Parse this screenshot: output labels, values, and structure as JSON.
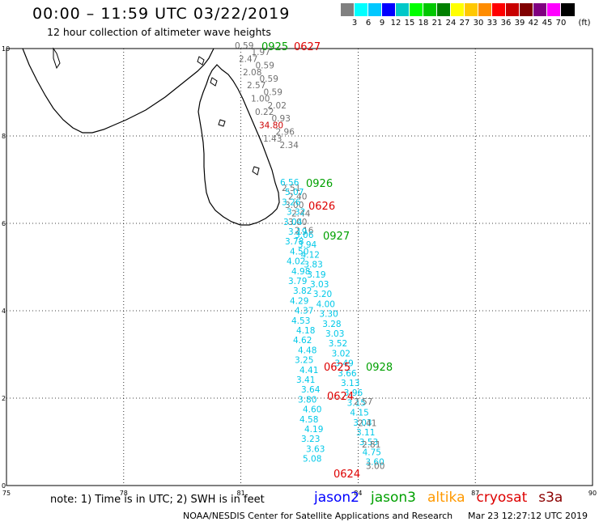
{
  "title": "00:00 – 11:59 UTC 03/22/2019",
  "subtitle": "12 hour collection of altimeter wave heights",
  "legend": {
    "unit": "(ft)",
    "ticks": [
      "3",
      "6",
      "9",
      "12",
      "15",
      "18",
      "21",
      "24",
      "27",
      "30",
      "33",
      "36",
      "39",
      "42",
      "45",
      "70"
    ],
    "colors": [
      "#808080",
      "#00ffff",
      "#00c8ff",
      "#0000ff",
      "#00c8c8",
      "#00ff00",
      "#00c800",
      "#008000",
      "#ffff00",
      "#ffc800",
      "#ff8c00",
      "#ff0000",
      "#c80000",
      "#800000",
      "#800080",
      "#ff00ff",
      "#000000"
    ]
  },
  "axes": {
    "x_ticks": [
      "75",
      "78",
      "81",
      "84",
      "87",
      "90"
    ],
    "y_ticks": [
      "0",
      "2",
      "4",
      "6",
      "8",
      "10"
    ]
  },
  "tracks": {
    "gray_north": [
      "0.59",
      "1.97",
      "2.47",
      "0.59",
      "2.08",
      "0.59",
      "2.57",
      "0.59",
      "1.00",
      "2.02",
      "0.22",
      "0.93",
      "34.80",
      "2.96",
      "1.43",
      "2.34"
    ],
    "gray_mid": [
      "2.51",
      "2.40",
      "3.00",
      "2.44",
      "3.00",
      "2.16"
    ],
    "gray_south": [
      "2.57",
      "2.41",
      "2.81",
      "3.00"
    ],
    "cyan_left": [
      "6.56",
      "5.07",
      "3.26",
      "3.32",
      "3.04",
      "3.19",
      "3.78",
      "4.50",
      "4.02",
      "4.98",
      "3.79",
      "3.82",
      "4.29",
      "4.37",
      "4.53",
      "4.18",
      "4.62",
      "4.48",
      "3.25",
      "4.41",
      "3.41",
      "3.64",
      "3.80",
      "4.60",
      "4.58",
      "4.19",
      "3.23",
      "3.63",
      "5.08"
    ],
    "cyan_right": [
      "3.06",
      "3.94",
      "4.12",
      "3.83",
      "3.19",
      "3.03",
      "3.20",
      "4.00",
      "3.30",
      "3.28",
      "3.03",
      "3.52",
      "3.02",
      "3.49",
      "3.66",
      "3.13",
      "3.96",
      "3.15",
      "4.15",
      "3.03",
      "3.11",
      "3.53",
      "4.75",
      "3.60"
    ]
  },
  "pass_labels": [
    {
      "text": "0925",
      "sat": "jason3"
    },
    {
      "text": "0627",
      "sat": "cryosat"
    },
    {
      "text": "0926",
      "sat": "jason3"
    },
    {
      "text": "0626",
      "sat": "cryosat"
    },
    {
      "text": "0927",
      "sat": "jason3"
    },
    {
      "text": "0625",
      "sat": "cryosat"
    },
    {
      "text": "0928",
      "sat": "jason3"
    },
    {
      "text": "0624",
      "sat": "cryosat"
    },
    {
      "text": "0624",
      "sat": "cryosat"
    }
  ],
  "note": "note:  1) Time is in UTC;  2) SWH is in feet",
  "satellites": [
    {
      "name": "jason2",
      "color": "#0000ff"
    },
    {
      "name": "jason3",
      "color": "#00a000"
    },
    {
      "name": "altika",
      "color": "#ff9900"
    },
    {
      "name": "cryosat",
      "color": "#dd0000"
    },
    {
      "name": "s3a",
      "color": "#8b0000"
    }
  ],
  "credit": "NOAA/NESDIS Center for Satellite Applications and Research",
  "timestamp": "Mar 23 12:27:12 UTC 2019"
}
